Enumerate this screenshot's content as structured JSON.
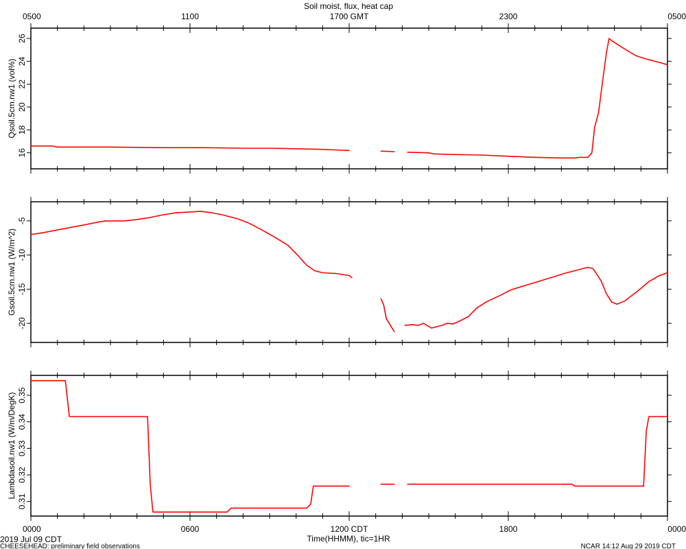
{
  "title": "Soil moist, flux, heat cap",
  "top_axis": {
    "ticks": [
      "0500",
      "1100",
      "1700 GMT",
      "2300",
      "0500"
    ]
  },
  "bottom_axis": {
    "ticks": [
      "0000",
      "0600",
      "1200 CDT",
      "1800",
      "0000"
    ],
    "xlabel": "Time(HHMM), tic=1HR"
  },
  "footer": {
    "date": "2019 Jul 09 CDT",
    "project": "CHEESEHEAD: preliminary field observations",
    "producer": "NCAR 14:12 Aug 29 2019 CDT",
    "date_right": "2019 CDT"
  },
  "colors": {
    "series": "#ff0000",
    "axes": "#000000"
  },
  "chart_data": [
    {
      "type": "line",
      "ylabel": "Qsoil.5cm.nw1 (vol%)",
      "ylim": [
        14.6,
        26.9
      ],
      "yticks": [
        16,
        18,
        20,
        22,
        24,
        26
      ],
      "x_unit": "hours since 0000 CDT",
      "xlim": [
        0,
        24
      ],
      "series": [
        {
          "values": [
            [
              0,
              16.6
            ],
            [
              0.8,
              16.6
            ],
            [
              1.0,
              16.5
            ],
            [
              3,
              16.5
            ],
            [
              5,
              16.45
            ],
            [
              6.5,
              16.45
            ],
            [
              8,
              16.4
            ],
            [
              9,
              16.4
            ],
            [
              10,
              16.35
            ],
            [
              11,
              16.3
            ],
            [
              11.5,
              16.25
            ],
            [
              12,
              16.2
            ]
          ]
        },
        {
          "values": [
            [
              13.2,
              16.15
            ],
            [
              13.7,
              16.1
            ]
          ]
        },
        {
          "values": [
            [
              14.2,
              16.05
            ],
            [
              15,
              16.0
            ],
            [
              15.2,
              15.9
            ],
            [
              16,
              15.85
            ],
            [
              17,
              15.8
            ],
            [
              18,
              15.7
            ],
            [
              19,
              15.6
            ],
            [
              20,
              15.55
            ],
            [
              20.5,
              15.55
            ],
            [
              20.7,
              15.6
            ],
            [
              21.0,
              15.6
            ],
            [
              21.15,
              16.0
            ],
            [
              21.25,
              18.2
            ],
            [
              21.4,
              19.5
            ],
            [
              21.55,
              22.2
            ],
            [
              21.7,
              24.8
            ],
            [
              21.8,
              26.0
            ],
            [
              21.9,
              25.8
            ],
            [
              22.3,
              25.2
            ],
            [
              22.8,
              24.5
            ],
            [
              23.2,
              24.2
            ],
            [
              23.7,
              23.9
            ],
            [
              24,
              23.7
            ]
          ]
        }
      ]
    },
    {
      "type": "line",
      "ylabel": "Gsoil.5cm.nw1 (W/m^2)",
      "ylim": [
        -22.8,
        -2.2
      ],
      "yticks": [
        -5,
        -10,
        -15,
        -20
      ],
      "x_unit": "hours since 0000 CDT",
      "xlim": [
        0,
        24
      ],
      "series": [
        {
          "values": [
            [
              0,
              -7.0
            ],
            [
              0.5,
              -6.7
            ],
            [
              1.3,
              -6.1
            ],
            [
              2,
              -5.6
            ],
            [
              2.5,
              -5.2
            ],
            [
              2.8,
              -5.0
            ],
            [
              3.5,
              -5.0
            ],
            [
              4,
              -4.8
            ],
            [
              4.5,
              -4.5
            ],
            [
              5,
              -4.1
            ],
            [
              5.5,
              -3.8
            ],
            [
              6,
              -3.7
            ],
            [
              6.4,
              -3.6
            ],
            [
              6.8,
              -3.8
            ],
            [
              7.2,
              -4.1
            ],
            [
              7.8,
              -4.7
            ],
            [
              8.2,
              -5.3
            ],
            [
              8.7,
              -6.3
            ],
            [
              9.2,
              -7.4
            ],
            [
              9.7,
              -8.6
            ],
            [
              10.1,
              -10.2
            ],
            [
              10.4,
              -11.5
            ],
            [
              10.7,
              -12.3
            ],
            [
              11,
              -12.6
            ],
            [
              11.5,
              -12.7
            ],
            [
              12,
              -13.0
            ],
            [
              12.1,
              -13.3
            ]
          ]
        },
        {
          "values": [
            [
              13.2,
              -16.4
            ],
            [
              13.3,
              -17.3
            ],
            [
              13.4,
              -19.3
            ],
            [
              13.6,
              -20.6
            ],
            [
              13.7,
              -21.2
            ]
          ]
        },
        {
          "values": [
            [
              14.1,
              -20.3
            ],
            [
              14.4,
              -20.2
            ],
            [
              14.6,
              -20.3
            ],
            [
              14.8,
              -20.0
            ],
            [
              15.1,
              -20.7
            ],
            [
              15.5,
              -20.3
            ],
            [
              15.7,
              -20.0
            ],
            [
              15.9,
              -20.1
            ],
            [
              16.1,
              -19.8
            ],
            [
              16.5,
              -19.0
            ],
            [
              16.8,
              -17.8
            ],
            [
              17.2,
              -16.8
            ],
            [
              17.7,
              -15.9
            ],
            [
              18.1,
              -15.1
            ],
            [
              18.6,
              -14.5
            ],
            [
              19.2,
              -13.8
            ],
            [
              19.7,
              -13.2
            ],
            [
              20.2,
              -12.6
            ],
            [
              20.7,
              -12.1
            ],
            [
              21.0,
              -11.8
            ],
            [
              21.2,
              -12.0
            ],
            [
              21.5,
              -13.8
            ],
            [
              21.7,
              -15.7
            ],
            [
              21.9,
              -16.9
            ],
            [
              22.1,
              -17.2
            ],
            [
              22.4,
              -16.7
            ],
            [
              22.9,
              -15.2
            ],
            [
              23.3,
              -13.9
            ],
            [
              23.7,
              -13.0
            ],
            [
              24,
              -12.6
            ]
          ]
        }
      ]
    },
    {
      "type": "line",
      "ylabel": "Lambdasoil.nw1 (W/m/DegK)",
      "ylim": [
        0.3045,
        0.3575
      ],
      "yticks": [
        0.31,
        0.32,
        0.33,
        0.34,
        0.35
      ],
      "x_unit": "hours since 0000 CDT",
      "xlim": [
        0,
        24
      ],
      "series": [
        {
          "values": [
            [
              0,
              0.3555
            ],
            [
              1.3,
              0.3555
            ],
            [
              1.45,
              0.342
            ],
            [
              4.4,
              0.342
            ],
            [
              4.5,
              0.3165
            ],
            [
              4.6,
              0.306
            ],
            [
              7.4,
              0.306
            ],
            [
              7.55,
              0.3075
            ],
            [
              10.4,
              0.3075
            ],
            [
              10.55,
              0.309
            ],
            [
              10.65,
              0.3158
            ],
            [
              12,
              0.3158
            ]
          ]
        },
        {
          "values": [
            [
              13.2,
              0.3165
            ],
            [
              13.7,
              0.3165
            ]
          ]
        },
        {
          "values": [
            [
              14.2,
              0.3165
            ],
            [
              20.4,
              0.3165
            ],
            [
              20.5,
              0.3158
            ],
            [
              23.1,
              0.3158
            ],
            [
              23.2,
              0.3365
            ],
            [
              23.3,
              0.342
            ],
            [
              24,
              0.342
            ]
          ]
        }
      ]
    }
  ]
}
